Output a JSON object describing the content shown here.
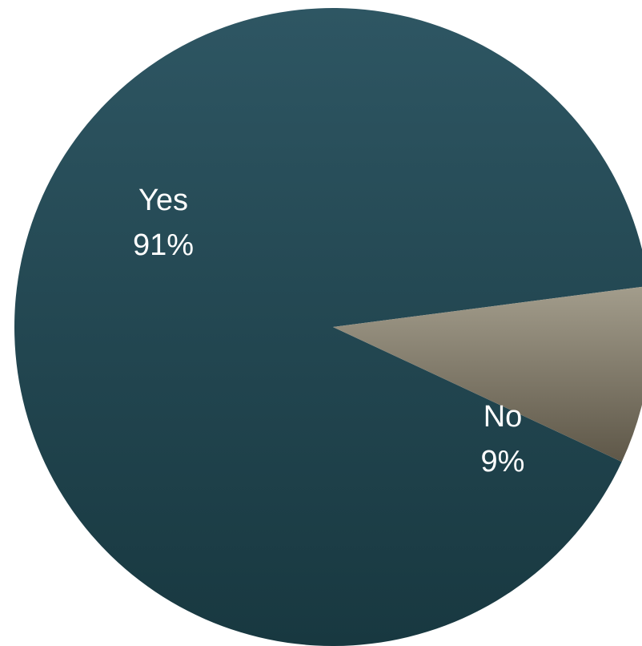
{
  "chart_data": {
    "type": "pie",
    "title": "",
    "slices": [
      {
        "label": "Yes",
        "value": 91,
        "display": "91%",
        "color_top": "#2e5663",
        "color_bottom": "#183840"
      },
      {
        "label": "No",
        "value": 9,
        "display": "9%",
        "color_top": "#a39d8c",
        "color_bottom": "#5e5748"
      }
    ],
    "start_angle_deg": 335,
    "direction": "counterclockwise",
    "legend": "none"
  }
}
